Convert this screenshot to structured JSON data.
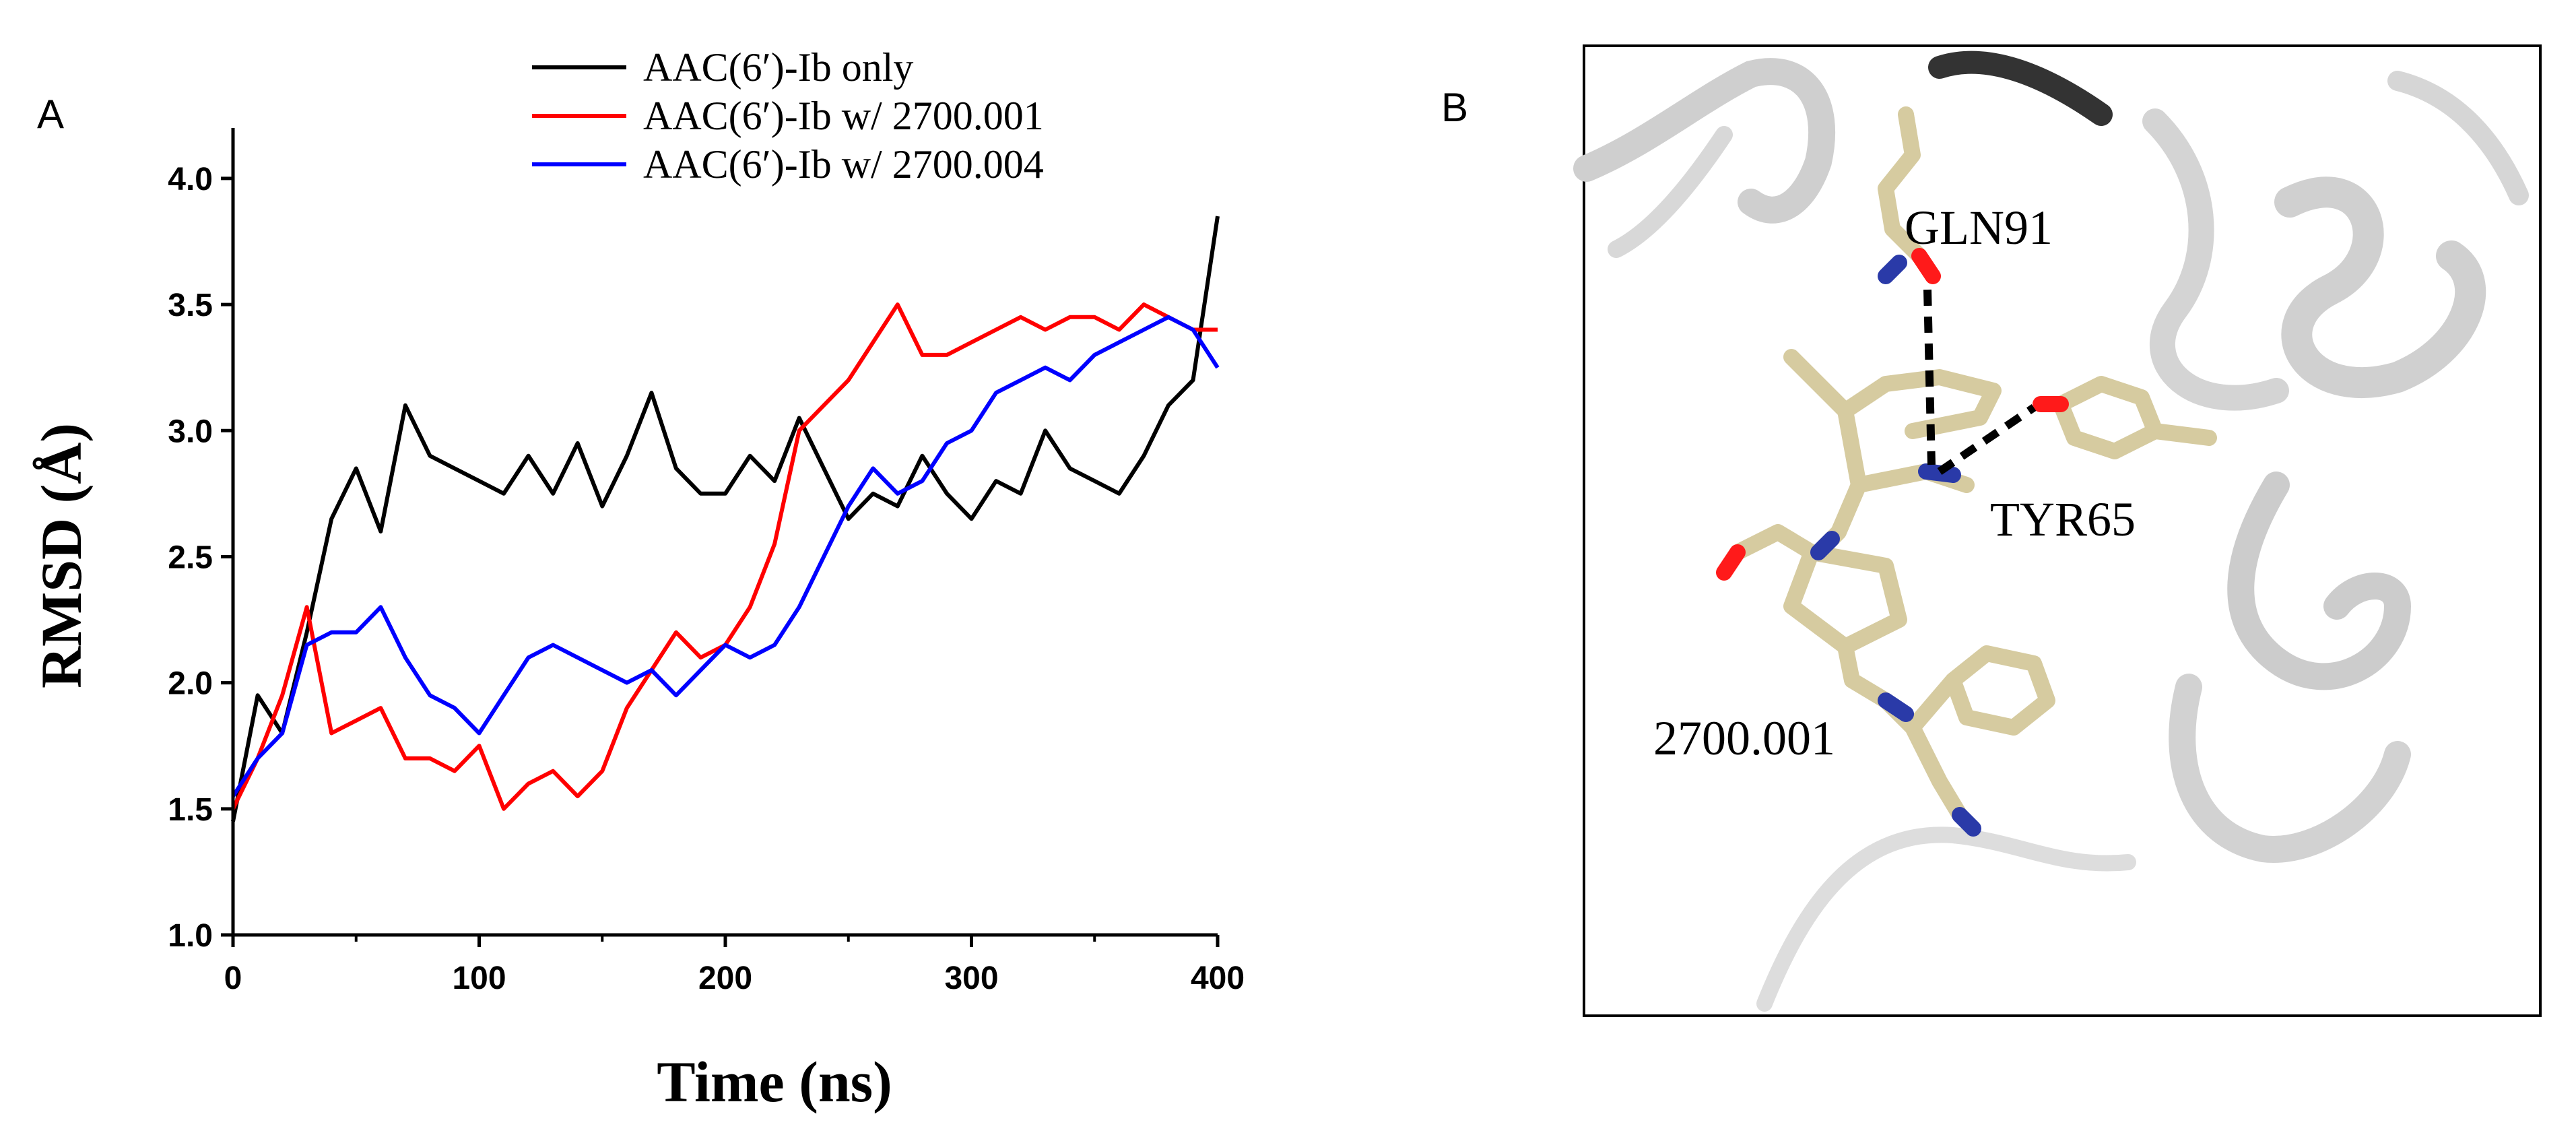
{
  "figure": {
    "panel_a_letter": "A",
    "panel_b_letter": "B"
  },
  "chart_data": {
    "type": "line",
    "title": "",
    "xlabel": "Time (ns)",
    "ylabel": "RMSD (Å)",
    "xlim": [
      0,
      400
    ],
    "ylim": [
      1.0,
      4.2
    ],
    "xticks": [
      0,
      100,
      200,
      300,
      400
    ],
    "yticks": [
      1.0,
      1.5,
      2.0,
      2.5,
      3.0,
      3.5,
      4.0
    ],
    "xtick_labels": [
      "0",
      "100",
      "200",
      "300",
      "400"
    ],
    "ytick_labels": [
      "1.0",
      "1.5",
      "2.0",
      "2.5",
      "3.0",
      "3.5",
      "4.0"
    ],
    "grid": false,
    "legend": "top",
    "x": [
      0,
      10,
      20,
      30,
      40,
      50,
      60,
      70,
      80,
      90,
      100,
      110,
      120,
      130,
      140,
      150,
      160,
      170,
      180,
      190,
      200,
      210,
      220,
      230,
      240,
      250,
      260,
      270,
      280,
      290,
      300,
      310,
      320,
      330,
      340,
      350,
      360,
      370,
      380,
      390,
      400
    ],
    "series": [
      {
        "name": "AAC(6′)-Ib only",
        "color": "#000000",
        "values": [
          1.45,
          1.95,
          1.8,
          2.2,
          2.65,
          2.85,
          2.6,
          3.1,
          2.9,
          2.85,
          2.8,
          2.75,
          2.9,
          2.75,
          2.95,
          2.7,
          2.9,
          3.15,
          2.85,
          2.75,
          2.75,
          2.9,
          2.8,
          3.05,
          2.85,
          2.65,
          2.75,
          2.7,
          2.9,
          2.75,
          2.65,
          2.8,
          2.75,
          3.0,
          2.85,
          2.8,
          2.75,
          2.9,
          3.1,
          3.2,
          3.85
        ]
      },
      {
        "name": "AAC(6′)-Ib w/ 2700.001",
        "color": "#ff0000",
        "values": [
          1.5,
          1.7,
          1.95,
          2.3,
          1.8,
          1.85,
          1.9,
          1.7,
          1.7,
          1.65,
          1.75,
          1.5,
          1.6,
          1.65,
          1.55,
          1.65,
          1.9,
          2.05,
          2.2,
          2.1,
          2.15,
          2.3,
          2.55,
          3.0,
          3.1,
          3.2,
          3.35,
          3.5,
          3.3,
          3.3,
          3.35,
          3.4,
          3.45,
          3.4,
          3.45,
          3.45,
          3.4,
          3.5,
          3.45,
          3.4,
          3.4
        ]
      },
      {
        "name": "AAC(6′)-Ib w/ 2700.004",
        "color": "#0000ff",
        "values": [
          1.55,
          1.7,
          1.8,
          2.15,
          2.2,
          2.2,
          2.3,
          2.1,
          1.95,
          1.9,
          1.8,
          1.95,
          2.1,
          2.15,
          2.1,
          2.05,
          2.0,
          2.05,
          1.95,
          2.05,
          2.15,
          2.1,
          2.15,
          2.3,
          2.5,
          2.7,
          2.85,
          2.75,
          2.8,
          2.95,
          3.0,
          3.15,
          3.2,
          3.25,
          3.2,
          3.3,
          3.35,
          3.4,
          3.45,
          3.4,
          3.25
        ]
      }
    ]
  },
  "structure_panel": {
    "labels": {
      "gln": "GLN91",
      "tyr": "TYR65",
      "ligand": "2700.001"
    }
  }
}
